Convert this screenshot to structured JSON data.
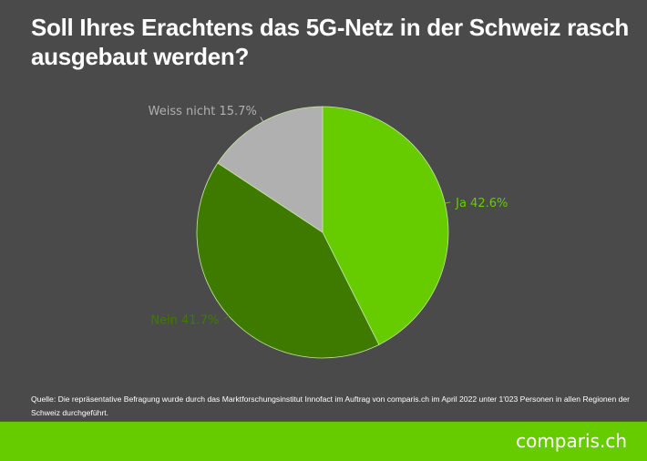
{
  "title": "Soll Ihres Erachtens das 5G-Netz in der Schweiz rasch ausgebaut werden?",
  "source": "Quelle: Die repräsentative Befragung wurde durch das Marktforschungsinstitut Innofact im Auftrag von comparis.ch im April 2022 unter 1'023 Personen in allen Regionen der Schweiz durchgeführt.",
  "logo": "comparis.ch",
  "colors": {
    "background": "#4a4a4a",
    "footer": "#66cc00"
  },
  "chart_data": {
    "type": "pie",
    "start_angle": "12 o'clock, clockwise",
    "slices": [
      {
        "label": "Ja",
        "value": 42.6,
        "display": "Ja 42.6%",
        "color": "#66cc00"
      },
      {
        "label": "Nein",
        "value": 41.7,
        "display": "Nein 41.7%",
        "color": "#3f7a00"
      },
      {
        "label": "Weiss nicht",
        "value": 15.7,
        "display": "Weiss nicht 15.7%",
        "color": "#b0b0b0"
      }
    ]
  }
}
